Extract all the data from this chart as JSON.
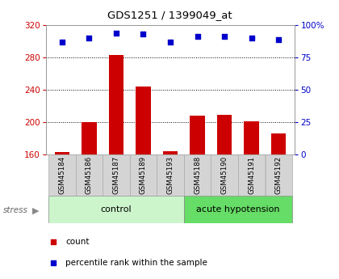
{
  "title": "GDS1251 / 1399049_at",
  "samples": [
    "GSM45184",
    "GSM45186",
    "GSM45187",
    "GSM45189",
    "GSM45193",
    "GSM45188",
    "GSM45190",
    "GSM45191",
    "GSM45192"
  ],
  "counts": [
    163,
    200,
    283,
    244,
    164,
    208,
    209,
    201,
    186
  ],
  "percentiles": [
    87,
    90,
    94,
    93,
    87,
    91,
    91,
    90,
    89
  ],
  "groups": [
    "control",
    "control",
    "control",
    "control",
    "control",
    "acute hypotension",
    "acute hypotension",
    "acute hypotension",
    "acute hypotension"
  ],
  "group_colors": {
    "control": "#ccf5cc",
    "acute hypotension": "#66dd66"
  },
  "bar_color": "#cc0000",
  "dot_color": "#0000cc",
  "ylim_left": [
    160,
    320
  ],
  "ylim_right": [
    0,
    100
  ],
  "yticks_left": [
    160,
    200,
    240,
    280,
    320
  ],
  "yticks_right": [
    0,
    25,
    50,
    75,
    100
  ],
  "yticklabels_right": [
    "0",
    "25",
    "50",
    "75",
    "100%"
  ],
  "plot_bg": "#ffffff",
  "legend_count_label": "count",
  "legend_pct_label": "percentile rank within the sample",
  "stress_label": "stress",
  "control_label": "control",
  "acute_label": "acute hypotension"
}
